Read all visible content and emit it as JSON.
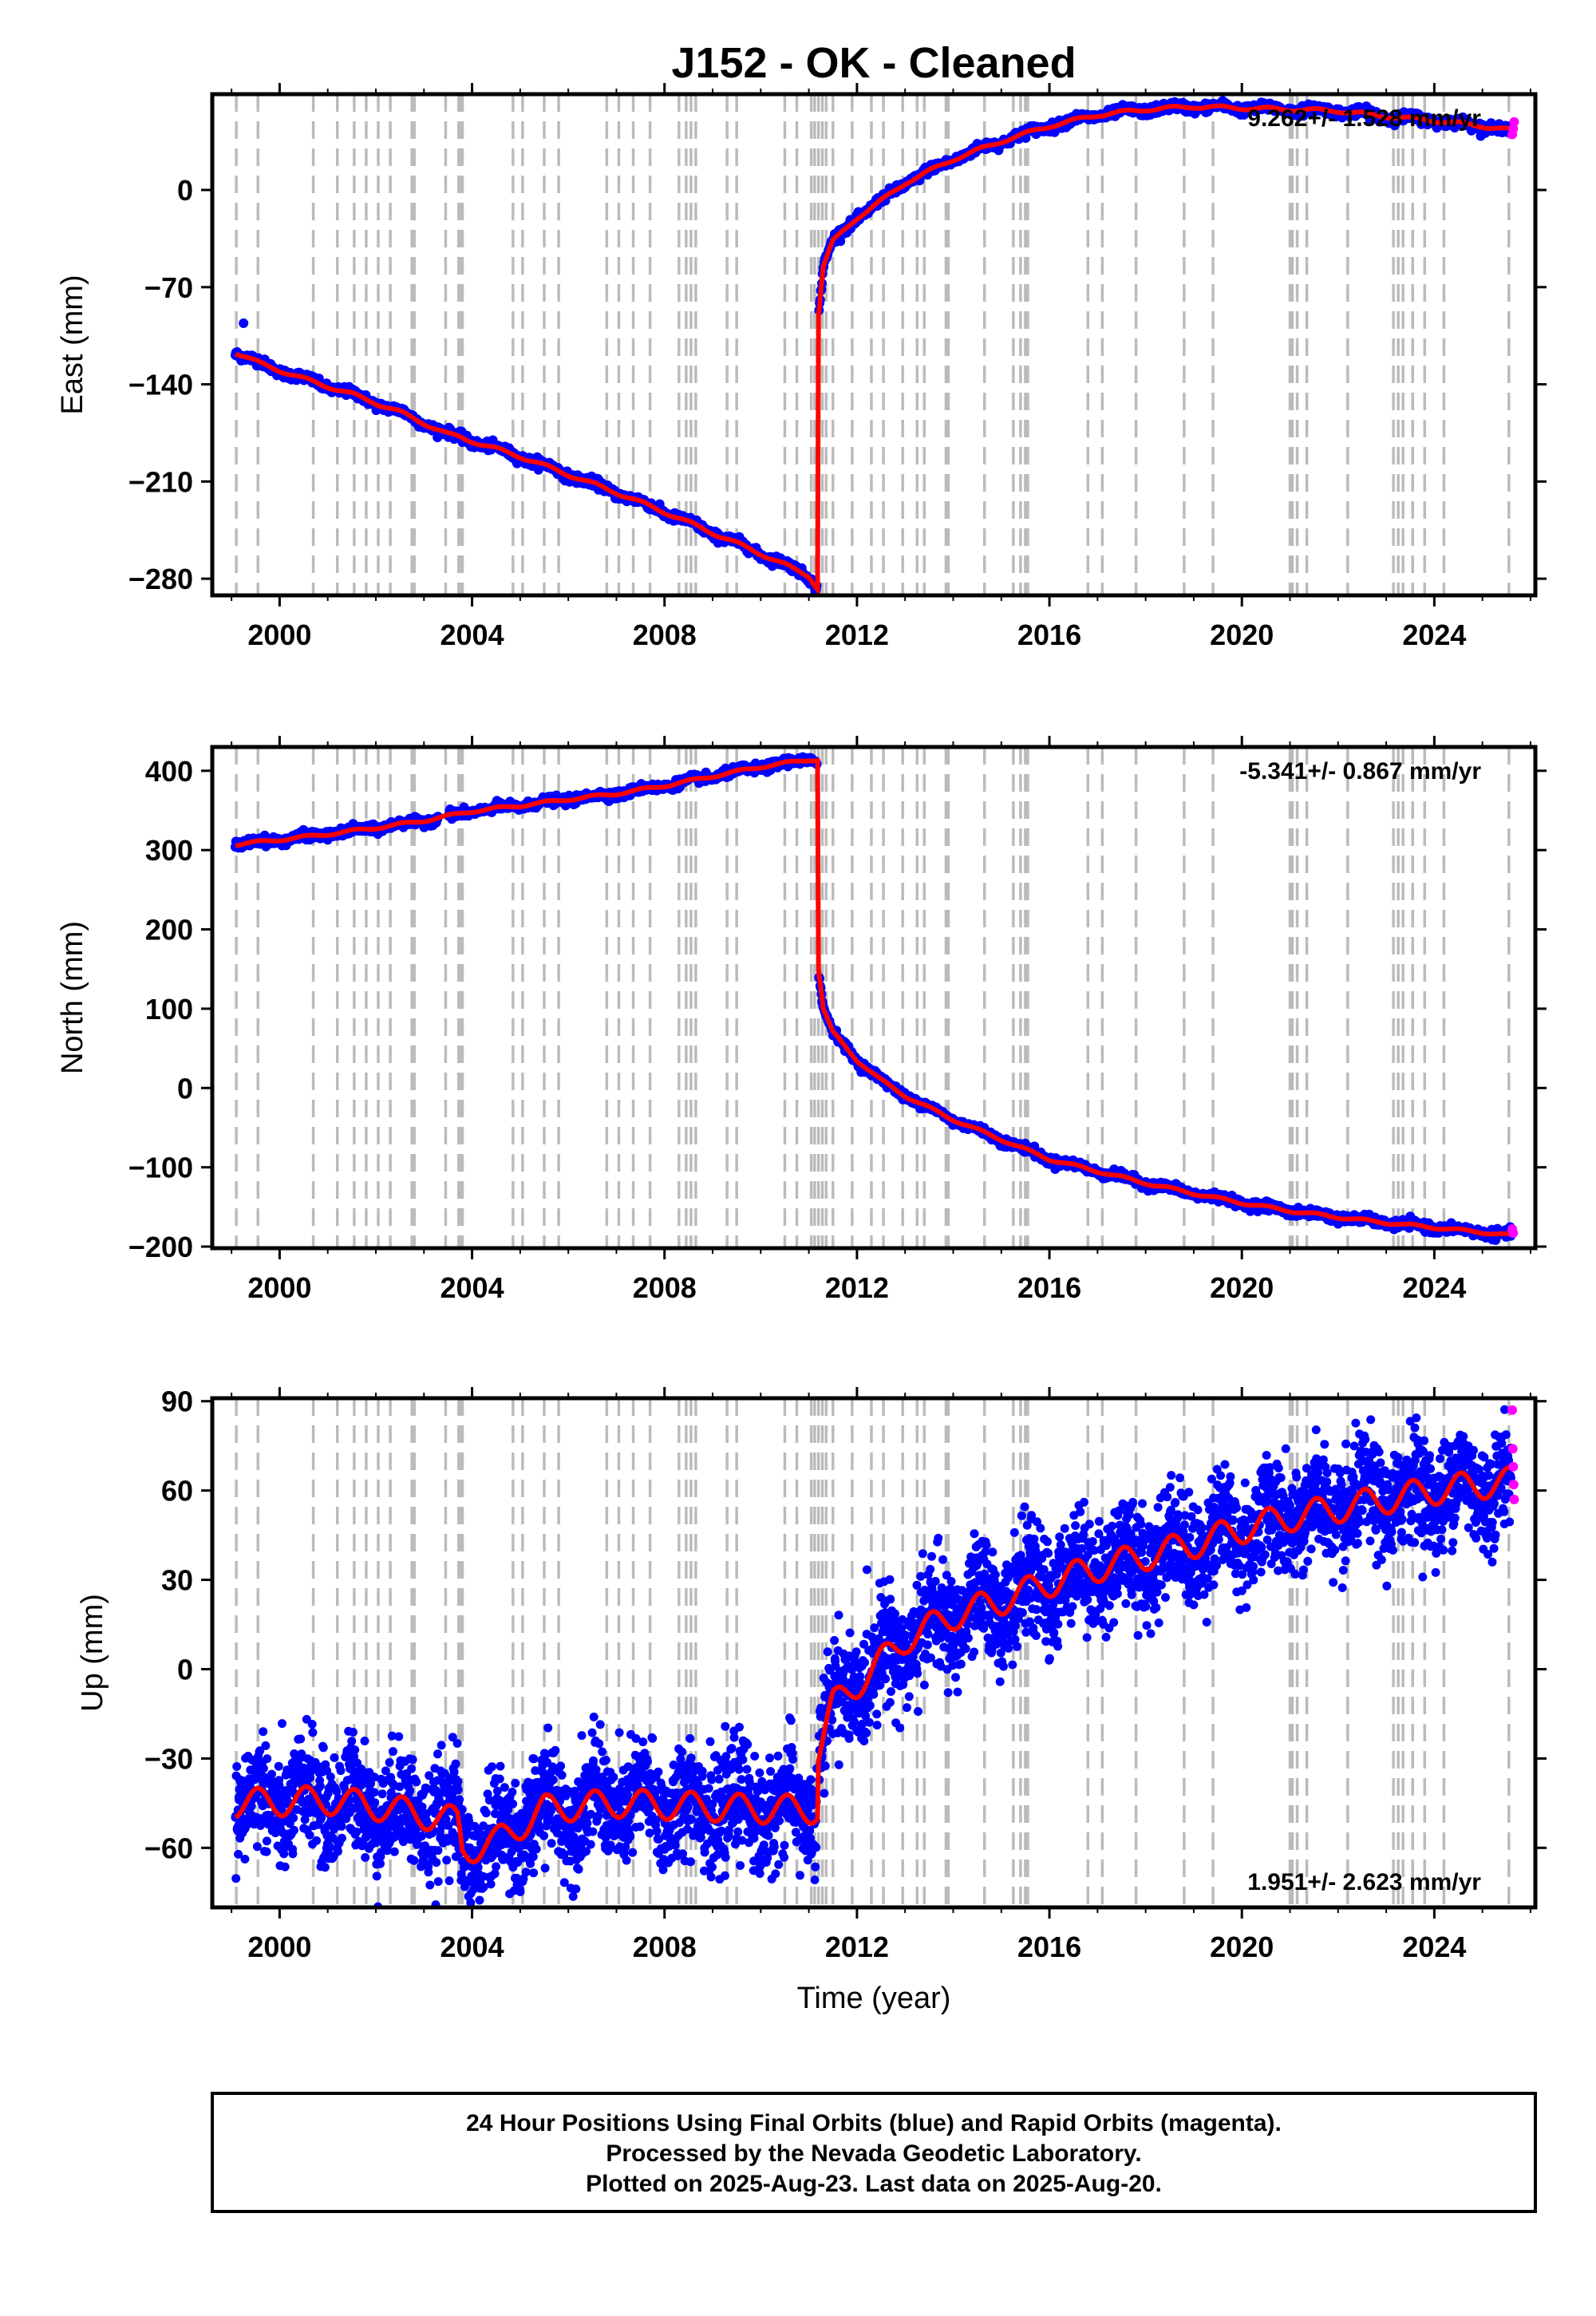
{
  "figure": {
    "title": "J152  - OK - Cleaned",
    "xlabel": "Time (year)"
  },
  "colors": {
    "final_orbits": "#0000ff",
    "rapid_orbits": "#ff00ff",
    "model": "#ff0000",
    "event_lines": "#bbbbbb"
  },
  "chart_data": [
    {
      "type": "scatter",
      "panel": "east",
      "ylabel": "East (mm)",
      "rate_label": "9.262+/- 1.528 mm/yr",
      "xlim": [
        1998.6,
        2026.1
      ],
      "ylim": [
        -292,
        69
      ],
      "x_ticks": [
        2000,
        2004,
        2008,
        2012,
        2016,
        2020,
        2024
      ],
      "y_ticks": [
        0,
        -70,
        -140,
        -210,
        -280
      ],
      "series_trend": {
        "x": [
          1999.08,
          1999.6,
          2000.5,
          2001.5,
          2002.5,
          2003.5,
          2003.75,
          2004.0,
          2005.0,
          2006.0,
          2007.0,
          2008.0,
          2009.0,
          2010.0,
          2011.0,
          2011.18,
          2011.2,
          2011.3,
          2011.5,
          2012.0,
          2012.5,
          2013.0,
          2014.0,
          2015.0,
          2016.0,
          2017.0,
          2018.0,
          2019.0,
          2020.0,
          2021.0,
          2022.0,
          2023.0,
          2024.0,
          2025.0,
          2025.6
        ],
        "y": [
          -117,
          -125,
          -136,
          -147,
          -160,
          -176,
          -178,
          -181,
          -192,
          -205,
          -218,
          -232,
          -247,
          -262,
          -278,
          -287,
          -90,
          -55,
          -37,
          -20,
          -8,
          5,
          22,
          35,
          46,
          54,
          58,
          60,
          59,
          58,
          57,
          53,
          50,
          46,
          43
        ]
      },
      "outliers": [
        {
          "x": 1999.25,
          "y": -96
        }
      ],
      "rapid_orbits": {
        "x": [
          2025.62,
          2025.64,
          2025.66
        ],
        "y": [
          40,
          44,
          49
        ]
      }
    },
    {
      "type": "scatter",
      "panel": "north",
      "ylabel": "North (mm)",
      "rate_label": "-5.341+/- 0.867 mm/yr",
      "xlim": [
        1998.6,
        2026.1
      ],
      "ylim": [
        -202,
        430
      ],
      "x_ticks": [
        2000,
        2004,
        2008,
        2012,
        2016,
        2020,
        2024
      ],
      "y_ticks": [
        400,
        300,
        200,
        100,
        0,
        -100,
        -200
      ],
      "series_trend": {
        "x": [
          1999.08,
          2000.0,
          2001.0,
          2002.0,
          2003.0,
          2004.0,
          2005.0,
          2006.0,
          2007.0,
          2008.0,
          2009.0,
          2010.0,
          2011.0,
          2011.18,
          2011.2,
          2011.3,
          2011.5,
          2012.0,
          2012.5,
          2013.0,
          2014.0,
          2015.0,
          2016.0,
          2017.0,
          2018.0,
          2019.0,
          2020.0,
          2021.0,
          2022.0,
          2023.0,
          2024.0,
          2025.0,
          2025.6
        ],
        "y": [
          307,
          313,
          320,
          328,
          337,
          349,
          356,
          364,
          371,
          381,
          393,
          405,
          414,
          414,
          150,
          100,
          70,
          35,
          10,
          -10,
          -40,
          -65,
          -90,
          -105,
          -120,
          -133,
          -145,
          -155,
          -163,
          -170,
          -176,
          -182,
          -186
        ]
      },
      "rapid_orbits": {
        "x": [
          2025.62,
          2025.64
        ],
        "y": [
          -178,
          -183
        ]
      }
    },
    {
      "type": "scatter",
      "panel": "up",
      "ylabel": "Up (mm)",
      "rate_label": "1.951+/- 2.623 mm/yr",
      "xlim": [
        1998.6,
        2026.1
      ],
      "ylim": [
        -80,
        91
      ],
      "x_ticks": [
        2000,
        2004,
        2008,
        2012,
        2016,
        2020,
        2024
      ],
      "y_ticks": [
        90,
        60,
        30,
        0,
        -30,
        -60
      ],
      "series_trend": {
        "x": [
          1999.08,
          2001.0,
          2002.0,
          2003.0,
          2003.7,
          2003.8,
          2004.5,
          2005.5,
          2007.0,
          2008.5,
          2010.0,
          2011.18,
          2011.2,
          2011.5,
          2012.0,
          2013.0,
          2014.0,
          2015.0,
          2016.0,
          2017.0,
          2018.0,
          2019.0,
          2020.0,
          2021.0,
          2022.0,
          2023.0,
          2024.0,
          2025.0,
          2025.6
        ],
        "y": [
          -45,
          -44,
          -46,
          -49,
          -51,
          -61,
          -58,
          -47,
          -45,
          -46,
          -47,
          -47,
          -28,
          -12,
          -5,
          10,
          18,
          23,
          29,
          34,
          38,
          42,
          47,
          51,
          54,
          57,
          60,
          62,
          63
        ]
      },
      "seasonal_amplitude": 6,
      "scatter_spread": 9,
      "rapid_orbits": {
        "x": [
          2025.62,
          2025.63,
          2025.64,
          2025.65,
          2025.66
        ],
        "y": [
          87,
          74,
          68,
          62,
          57
        ]
      }
    }
  ],
  "event_lines": [
    1999.1,
    1999.55,
    2000.7,
    2001.2,
    2001.55,
    2001.8,
    2002.05,
    2002.3,
    2002.75,
    2002.8,
    2003.45,
    2003.72,
    2003.76,
    2003.8,
    2004.85,
    2005.05,
    2005.5,
    2005.8,
    2006.8,
    2007.05,
    2007.35,
    2007.7,
    2008.3,
    2008.45,
    2008.55,
    2008.65,
    2009.3,
    2009.5,
    2010.5,
    2010.75,
    2011.05,
    2011.12,
    2011.2,
    2011.28,
    2011.36,
    2011.5,
    2011.9,
    2012.3,
    2012.55,
    2012.95,
    2013.25,
    2013.4,
    2013.85,
    2013.9,
    2014.65,
    2015.25,
    2015.4,
    2015.5,
    2015.55,
    2016.8,
    2017.1,
    2017.8,
    2018.8,
    2019.4,
    2021.0,
    2021.05,
    2021.15,
    2021.35,
    2022.2,
    2023.15,
    2023.25,
    2023.35,
    2023.55,
    2023.8,
    2024.2,
    2025.55
  ],
  "footer": {
    "line1": "24 Hour Positions Using Final Orbits (blue) and Rapid Orbits (magenta).",
    "line2": "Processed by the Nevada Geodetic Laboratory.",
    "line3": "Plotted on 2025-Aug-23. Last data on 2025-Aug-20."
  }
}
